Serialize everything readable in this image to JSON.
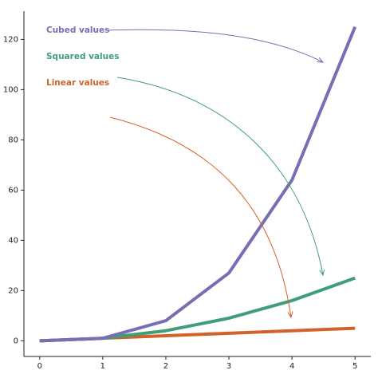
{
  "chart_data": {
    "type": "line",
    "x": [
      0,
      1,
      2,
      3,
      4,
      5
    ],
    "series": [
      {
        "name": "Cubed values",
        "color": "#7570b3",
        "values": [
          0,
          1,
          8,
          27,
          64,
          125
        ]
      },
      {
        "name": "Squared values",
        "color": "#3f9e78",
        "values": [
          0,
          1,
          4,
          9,
          16,
          25
        ]
      },
      {
        "name": "Linear values",
        "color": "#d2622a",
        "values": [
          0,
          1,
          2,
          3,
          4,
          5
        ]
      }
    ],
    "xlim": [
      -0.25,
      5.25
    ],
    "ylim": [
      -6.25,
      131.25
    ],
    "xticks": [
      0,
      1,
      2,
      3,
      4,
      5
    ],
    "yticks": [
      0,
      20,
      40,
      60,
      80,
      100,
      120
    ],
    "grid": false
  }
}
